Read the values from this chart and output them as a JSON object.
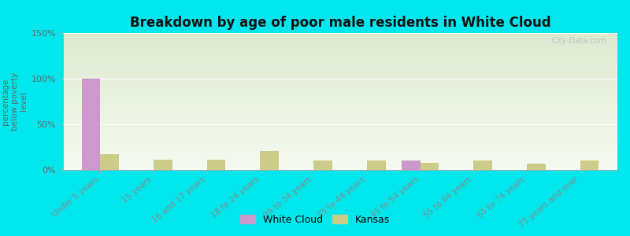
{
  "title": "Breakdown by age of poor male residents in White Cloud",
  "ylabel": "percentage\nbelow poverty\nlevel",
  "categories": [
    "Under 5 years",
    "15 years",
    "16 and 17 years",
    "18 to 24 years",
    "25 to 34 years",
    "35 to 44 years",
    "45 to 54 years",
    "55 to 64 years",
    "65 to 74 years",
    "75 years and over"
  ],
  "white_cloud": [
    100,
    0,
    0,
    0,
    0,
    0,
    10,
    0,
    0,
    0
  ],
  "kansas": [
    17,
    11,
    11,
    21,
    10,
    10,
    8,
    10,
    7,
    10
  ],
  "white_cloud_color": "#cc99cc",
  "kansas_color": "#cccc88",
  "bg_color_top": "#dde8d0",
  "bg_color_bottom": "#f5faf0",
  "ylim": [
    0,
    150
  ],
  "yticks": [
    0,
    50,
    100,
    150
  ],
  "ytick_labels": [
    "0%",
    "50%",
    "100%",
    "150%"
  ],
  "background_outer": "#00e8ee",
  "title_fontsize": 12,
  "axis_fontsize": 8,
  "legend_labels": [
    "White Cloud",
    "Kansas"
  ],
  "bar_width": 0.35
}
